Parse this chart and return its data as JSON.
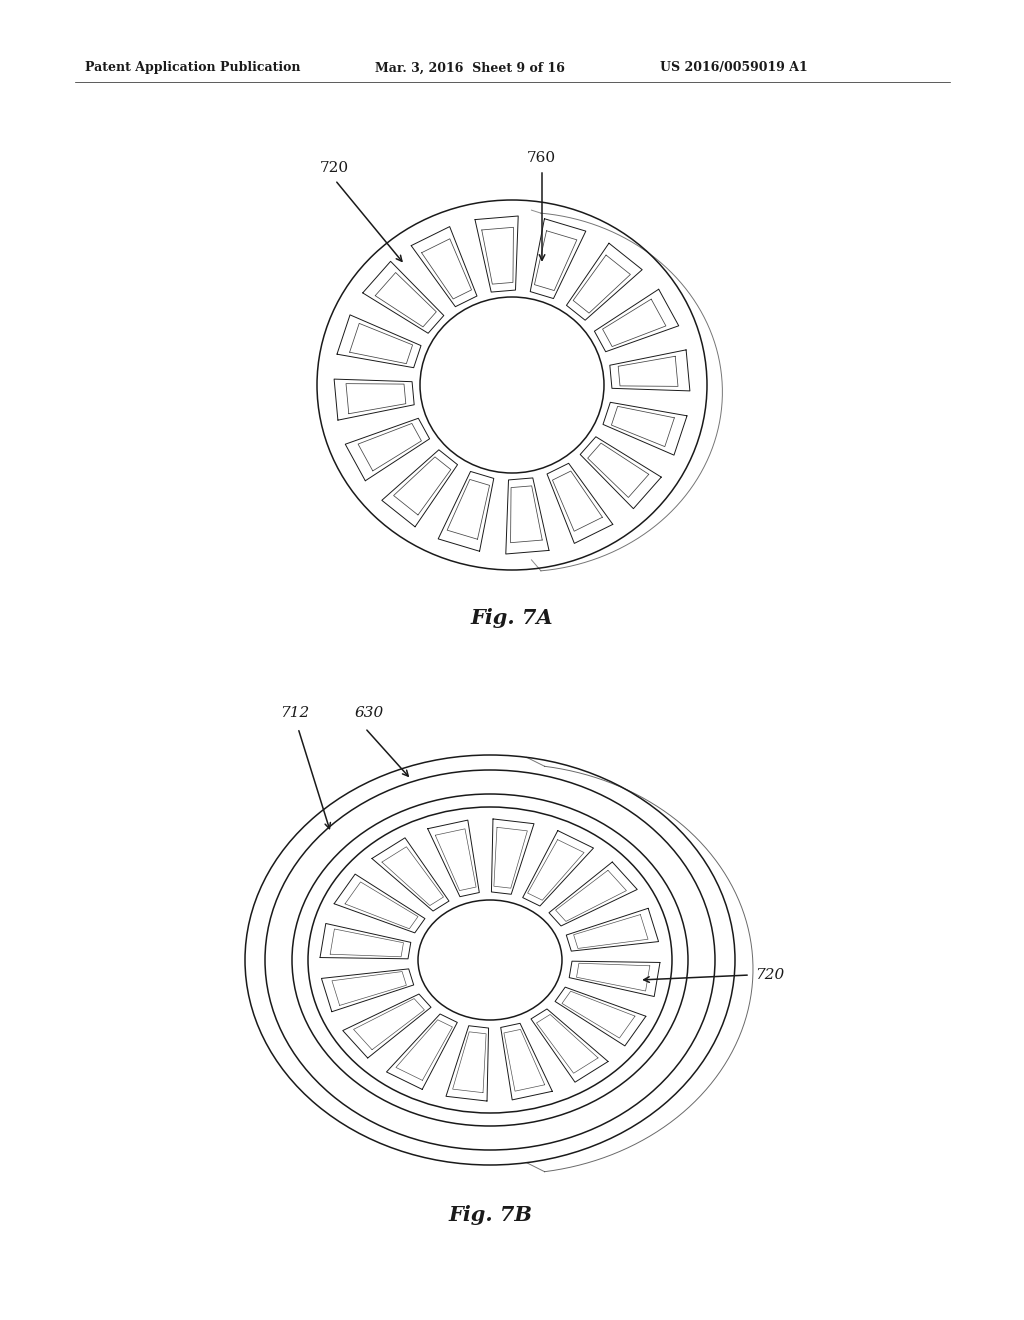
{
  "bg_color": "#ffffff",
  "line_color": "#1a1a1a",
  "header_left": "Patent Application Publication",
  "header_mid": "Mar. 3, 2016  Sheet 9 of 16",
  "header_right": "US 2016/0059019 A1",
  "fig7a_label": "Fig. 7A",
  "fig7b_label": "Fig. 7B",
  "label_720_top": "720",
  "label_760": "760",
  "label_712": "712",
  "label_630": "630",
  "label_720_bot": "720"
}
